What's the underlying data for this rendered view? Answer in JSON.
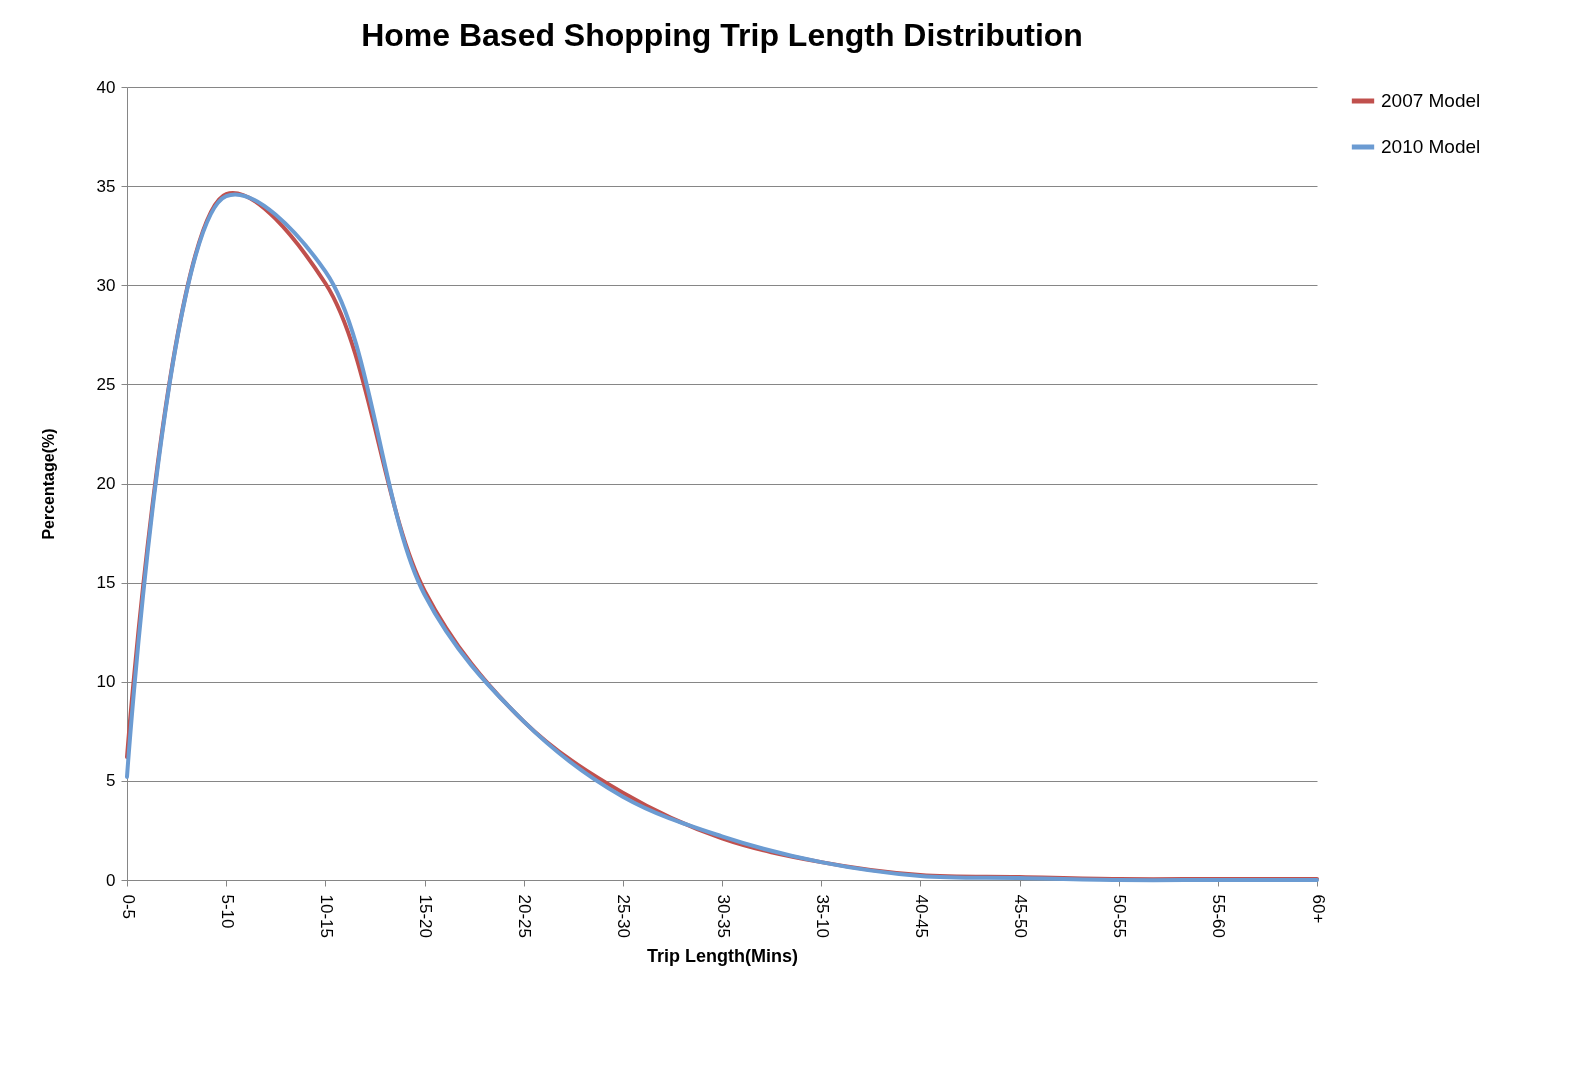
{
  "chart_data": {
    "type": "line",
    "title": "Home Based Shopping Trip Length Distribution",
    "xlabel": "Trip Length(Mins)",
    "ylabel": "Percentage(%)",
    "categories": [
      "0-5",
      "5-10",
      "10-15",
      "15-20",
      "20-25",
      "25-30",
      "30-35",
      "35-10",
      "40-45",
      "45-50",
      "50-55",
      "55-60",
      "60+"
    ],
    "series": [
      {
        "name": "2007 Model",
        "color": "#c0504d",
        "values": [
          6.2,
          34.6,
          30.1,
          14.6,
          8.0,
          4.4,
          2.1,
          0.9,
          0.25,
          0.15,
          0.05,
          0.05,
          0.05
        ]
      },
      {
        "name": "2010 Model",
        "color": "#6b9bd2",
        "values": [
          5.2,
          34.5,
          30.7,
          14.4,
          8.0,
          4.2,
          2.2,
          0.9,
          0.2,
          0.1,
          0.0,
          0.0,
          0.0
        ]
      }
    ],
    "ylim": [
      0,
      40
    ],
    "yticks": [
      0,
      5,
      10,
      15,
      20,
      25,
      30,
      35,
      40
    ],
    "grid": "y",
    "legend": "right",
    "marker": "none",
    "line_style": "solid"
  }
}
